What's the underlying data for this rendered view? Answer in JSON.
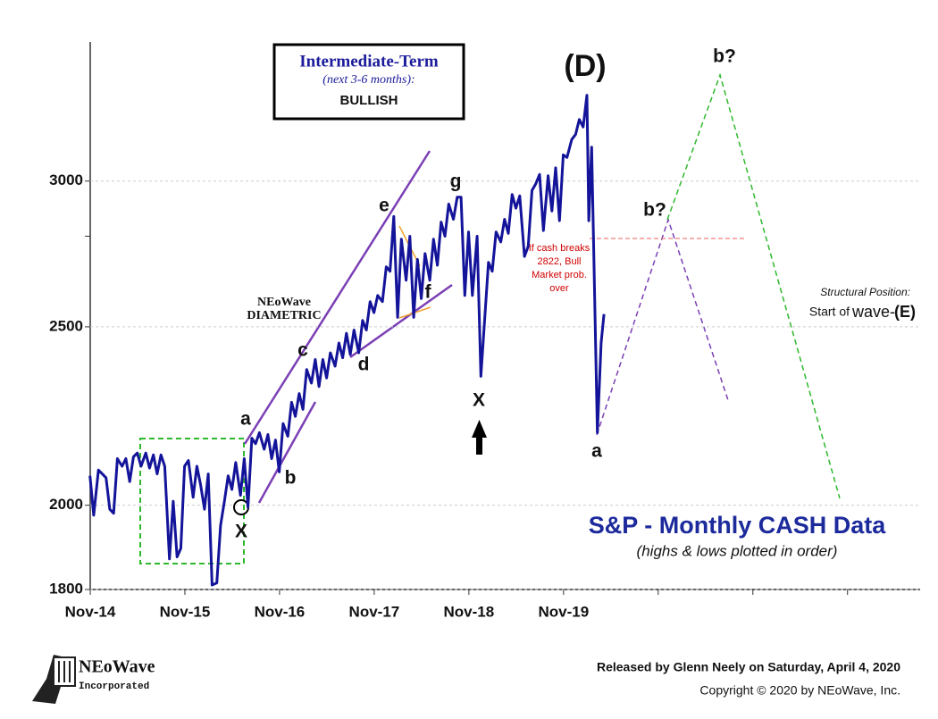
{
  "chart_data": {
    "type": "line",
    "title": "S&P - Monthly CASH Data",
    "subtitle": "(highs & lows plotted in order)",
    "log_scale": true,
    "grid": true,
    "xlim": [
      2014.833,
      2023.6
    ],
    "ylim": [
      1800,
      3570
    ],
    "xticks": [
      {
        "value": 2014.833,
        "label": "Nov-14"
      },
      {
        "value": 2015.833,
        "label": "Nov-15"
      },
      {
        "value": 2016.833,
        "label": "Nov-16"
      },
      {
        "value": 2017.833,
        "label": "Nov-17"
      },
      {
        "value": 2018.833,
        "label": "Nov-18"
      },
      {
        "value": 2019.833,
        "label": "Nov-19"
      },
      {
        "value": 2020.833,
        "label": null
      },
      {
        "value": 2021.833,
        "label": null
      },
      {
        "value": 2022.833,
        "label": null
      }
    ],
    "yticks": [
      1800,
      2000,
      2500,
      {
        "value": 2800,
        "label": null
      },
      3000
    ],
    "series": [
      {
        "name": "S&P 500",
        "color": "#14149a",
        "x": [
          2014.83,
          2014.87,
          2014.92,
          2014.96,
          2015.0,
          2015.04,
          2015.08,
          2015.12,
          2015.17,
          2015.21,
          2015.25,
          2015.29,
          2015.33,
          2015.37,
          2015.42,
          2015.46,
          2015.5,
          2015.54,
          2015.58,
          2015.62,
          2015.67,
          2015.71,
          2015.75,
          2015.79,
          2015.83,
          2015.87,
          2015.92,
          2015.96,
          2016.0,
          2016.04,
          2016.08,
          2016.12,
          2016.17,
          2016.21,
          2016.25,
          2016.29,
          2016.33,
          2016.37,
          2016.42,
          2016.46,
          2016.5,
          2016.54,
          2016.58,
          2016.62,
          2016.67,
          2016.71,
          2016.75,
          2016.79,
          2016.83,
          2016.87,
          2016.92,
          2016.96,
          2017.0,
          2017.04,
          2017.08,
          2017.12,
          2017.17,
          2017.21,
          2017.25,
          2017.29,
          2017.33,
          2017.37,
          2017.42,
          2017.46,
          2017.5,
          2017.54,
          2017.58,
          2017.62,
          2017.67,
          2017.71,
          2017.75,
          2017.79,
          2017.83,
          2017.87,
          2017.92,
          2017.96,
          2018.0,
          2018.04,
          2018.08,
          2018.12,
          2018.17,
          2018.21,
          2018.25,
          2018.29,
          2018.33,
          2018.37,
          2018.42,
          2018.46,
          2018.5,
          2018.54,
          2018.58,
          2018.62,
          2018.67,
          2018.71,
          2018.75,
          2018.79,
          2018.83,
          2018.87,
          2018.92,
          2018.96,
          2019.04,
          2019.08,
          2019.12,
          2019.17,
          2019.21,
          2019.25,
          2019.29,
          2019.33,
          2019.37,
          2019.42,
          2019.46,
          2019.5,
          2019.54,
          2019.58,
          2019.62,
          2019.67,
          2019.71,
          2019.75,
          2019.79,
          2019.83,
          2019.87,
          2019.92,
          2019.96,
          2020.0,
          2020.04,
          2020.08,
          2020.1,
          2020.13,
          2020.19,
          2020.23,
          2020.26
        ],
        "values": [
          2075,
          1975,
          2090,
          2080,
          2070,
          1990,
          1980,
          2120,
          2100,
          2120,
          2060,
          2125,
          2135,
          2100,
          2135,
          2095,
          2130,
          2080,
          2130,
          2100,
          1870,
          2010,
          1875,
          1895,
          2100,
          2115,
          2020,
          2100,
          2050,
          1990,
          2080,
          1810,
          1815,
          1950,
          2010,
          2075,
          2040,
          2110,
          2025,
          2120,
          1995,
          2175,
          2160,
          2190,
          2145,
          2185,
          2120,
          2170,
          2085,
          2215,
          2180,
          2275,
          2235,
          2300,
          2255,
          2370,
          2330,
          2400,
          2320,
          2400,
          2345,
          2420,
          2380,
          2450,
          2405,
          2480,
          2415,
          2490,
          2420,
          2520,
          2490,
          2580,
          2545,
          2600,
          2580,
          2695,
          2680,
          2870,
          2530,
          2790,
          2650,
          2800,
          2530,
          2720,
          2590,
          2740,
          2650,
          2790,
          2700,
          2850,
          2800,
          2915,
          2860,
          2940,
          2940,
          2600,
          2815,
          2600,
          2800,
          2350,
          2710,
          2680,
          2815,
          2780,
          2860,
          2810,
          2950,
          2900,
          2945,
          2730,
          2765,
          2965,
          2990,
          3025,
          2820,
          3020,
          2890,
          3050,
          2855,
          3100,
          3090,
          3160,
          3180,
          3240,
          3210,
          3340,
          2855,
          3130,
          2190,
          2450,
          2540
        ]
      }
    ],
    "annotations": [
      "Intermediate-Term",
      "(next 3-6 months):",
      "BULLISH",
      "(D)",
      "b?",
      "b?",
      "NEoWave",
      "DIAMETRIC",
      "a",
      "b",
      "c",
      "d",
      "e",
      "f",
      "g",
      "X",
      "X",
      "a",
      "If cash breaks",
      "2822, Bull",
      "Market prob.",
      "over",
      "Structural Position:",
      "Start of",
      "wave-",
      "(E)"
    ]
  },
  "footer": {
    "logo_name": "NEoWave",
    "logo_sub": "Incorporated",
    "release": "Released by Glenn Neely on Saturday, April 4, 2020",
    "copyright": "Copyright © 2020 by NEoWave, Inc."
  }
}
